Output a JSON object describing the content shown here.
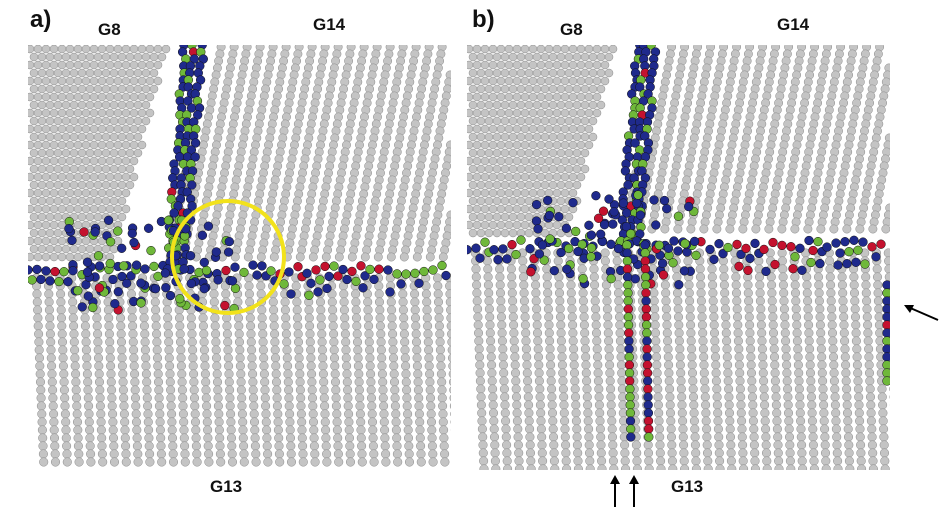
{
  "panels": [
    {
      "letter": "a)",
      "grain_top_left": "G8",
      "grain_top_right": "G14",
      "grain_bottom": "G13"
    },
    {
      "letter": "b)",
      "grain_top_left": "G8",
      "grain_top_right": "G14",
      "grain_bottom": "G13"
    }
  ],
  "colors": {
    "bulk_atom": "#c4c4c4",
    "bulk_atom_edge": "#8a8a8a",
    "boundary_blue": "#1f2a8c",
    "boundary_green": "#6fb83a",
    "boundary_red": "#c4122f",
    "highlight_circle": "#f2e21b",
    "arrow": "#000000"
  }
}
